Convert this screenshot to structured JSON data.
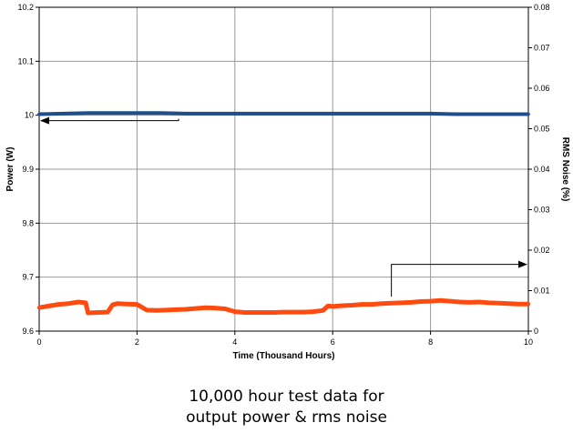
{
  "chart_data": {
    "type": "line",
    "title": "",
    "xlabel": "Time (Thousand Hours)",
    "ylabel_left": "Power (W)",
    "ylabel_right": "RMS Noise (%)",
    "xlim": [
      0,
      10
    ],
    "ylim_left": [
      9.6,
      10.2
    ],
    "ylim_right": [
      0,
      0.08
    ],
    "x_ticks": [
      "0",
      "2",
      "4",
      "6",
      "8",
      "10"
    ],
    "y_ticks_left": [
      "9.6",
      "9.7",
      "9.8",
      "9.9",
      "10",
      "10.1",
      "10.2"
    ],
    "y_ticks_right": [
      "0",
      "0.01",
      "0.02",
      "0.03",
      "0.04",
      "0.05",
      "0.06",
      "0.07",
      "0.08"
    ],
    "grid": true,
    "series": [
      {
        "axis": "left",
        "color": "#1f4e8c",
        "x": [
          0,
          0.5,
          1,
          1.5,
          2,
          2.5,
          3,
          3.5,
          4,
          4.5,
          5,
          5.5,
          6,
          6.5,
          7,
          7.5,
          8,
          8.5,
          9,
          9.5,
          10
        ],
        "y": [
          10.002,
          10.003,
          10.004,
          10.004,
          10.004,
          10.004,
          10.003,
          10.003,
          10.003,
          10.003,
          10.003,
          10.003,
          10.003,
          10.003,
          10.003,
          10.003,
          10.003,
          10.002,
          10.002,
          10.002,
          10.002
        ]
      },
      {
        "axis": "right",
        "color": "#ff4a10",
        "x": [
          0,
          0.2,
          0.4,
          0.6,
          0.8,
          0.95,
          1.0,
          1.2,
          1.4,
          1.5,
          1.6,
          1.8,
          2.0,
          2.2,
          2.4,
          2.6,
          2.8,
          3.0,
          3.2,
          3.4,
          3.6,
          3.8,
          4.0,
          4.2,
          4.4,
          4.6,
          4.8,
          5.0,
          5.2,
          5.4,
          5.6,
          5.8,
          5.9,
          6.0,
          6.2,
          6.4,
          6.6,
          6.8,
          7.0,
          7.2,
          7.4,
          7.6,
          7.8,
          8.0,
          8.2,
          8.4,
          8.6,
          8.8,
          9.0,
          9.2,
          9.4,
          9.6,
          9.8,
          10.0
        ],
        "y": [
          0.0058,
          0.0062,
          0.0066,
          0.0068,
          0.0072,
          0.007,
          0.0045,
          0.0046,
          0.0047,
          0.0065,
          0.0068,
          0.0067,
          0.0066,
          0.0052,
          0.0051,
          0.0052,
          0.0053,
          0.0054,
          0.0056,
          0.0058,
          0.0057,
          0.0055,
          0.0048,
          0.0046,
          0.0046,
          0.0046,
          0.0046,
          0.0047,
          0.0047,
          0.0047,
          0.0048,
          0.0051,
          0.0062,
          0.0061,
          0.0063,
          0.0064,
          0.0066,
          0.0066,
          0.0068,
          0.0069,
          0.007,
          0.0071,
          0.0073,
          0.0074,
          0.0076,
          0.0074,
          0.0072,
          0.0071,
          0.0072,
          0.007,
          0.0069,
          0.0068,
          0.0067,
          0.0067
        ]
      }
    ],
    "annotations": [
      {
        "type": "arrow",
        "points_to": "left",
        "from_series": "power",
        "x_data": 2.85,
        "y_data_left": 9.99
      },
      {
        "type": "arrow",
        "points_to": "right",
        "from_series": "noise",
        "x_data": 7.2,
        "y_data_right": 0.0165
      }
    ]
  },
  "caption": {
    "line1": "10,000 hour test data for",
    "line2": "output power & rms noise"
  }
}
